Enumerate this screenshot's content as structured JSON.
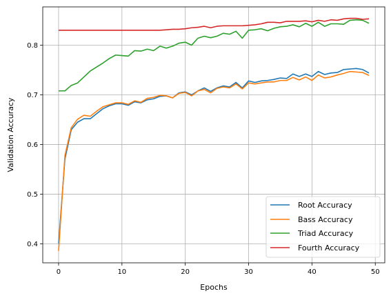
{
  "chart_data": {
    "type": "line",
    "title": "",
    "xlabel": "Epochs",
    "ylabel": "Validation Accuracy",
    "xlim": [
      -2.5,
      51.5
    ],
    "ylim": [
      0.362,
      0.877
    ],
    "xticks": [
      0,
      10,
      20,
      30,
      40,
      50
    ],
    "yticks": [
      0.4,
      0.5,
      0.6,
      0.7,
      0.8
    ],
    "grid": true,
    "legend_position": "lower-right",
    "x": [
      0,
      1,
      2,
      3,
      4,
      5,
      6,
      7,
      8,
      9,
      10,
      11,
      12,
      13,
      14,
      15,
      16,
      17,
      18,
      19,
      20,
      21,
      22,
      23,
      24,
      25,
      26,
      27,
      28,
      29,
      30,
      31,
      32,
      33,
      34,
      35,
      36,
      37,
      38,
      39,
      40,
      41,
      42,
      43,
      44,
      45,
      46,
      47,
      48,
      49
    ],
    "series": [
      {
        "name": "Root Accuracy",
        "color": "#1f77b4",
        "values": [
          0.401,
          0.571,
          0.63,
          0.645,
          0.652,
          0.652,
          0.662,
          0.672,
          0.678,
          0.682,
          0.682,
          0.679,
          0.686,
          0.684,
          0.69,
          0.692,
          0.697,
          0.698,
          0.694,
          0.704,
          0.706,
          0.7,
          0.708,
          0.714,
          0.707,
          0.714,
          0.718,
          0.716,
          0.725,
          0.714,
          0.728,
          0.725,
          0.728,
          0.729,
          0.731,
          0.734,
          0.733,
          0.742,
          0.737,
          0.742,
          0.737,
          0.747,
          0.741,
          0.744,
          0.745,
          0.751,
          0.752,
          0.753,
          0.751,
          0.744
        ]
      },
      {
        "name": "Bass Accuracy",
        "color": "#ff7f0e",
        "values": [
          0.386,
          0.578,
          0.634,
          0.651,
          0.659,
          0.657,
          0.667,
          0.676,
          0.68,
          0.684,
          0.684,
          0.681,
          0.688,
          0.685,
          0.693,
          0.695,
          0.699,
          0.698,
          0.694,
          0.703,
          0.705,
          0.698,
          0.708,
          0.711,
          0.704,
          0.713,
          0.716,
          0.714,
          0.722,
          0.712,
          0.724,
          0.722,
          0.724,
          0.726,
          0.726,
          0.729,
          0.729,
          0.735,
          0.73,
          0.736,
          0.729,
          0.74,
          0.734,
          0.736,
          0.74,
          0.743,
          0.747,
          0.746,
          0.745,
          0.739
        ]
      },
      {
        "name": "Triad Accuracy",
        "color": "#2ca02c",
        "values": [
          0.708,
          0.708,
          0.719,
          0.724,
          0.736,
          0.748,
          0.756,
          0.764,
          0.773,
          0.78,
          0.779,
          0.778,
          0.789,
          0.788,
          0.792,
          0.789,
          0.798,
          0.794,
          0.798,
          0.804,
          0.806,
          0.8,
          0.814,
          0.818,
          0.815,
          0.818,
          0.824,
          0.822,
          0.828,
          0.814,
          0.83,
          0.831,
          0.833,
          0.829,
          0.834,
          0.837,
          0.838,
          0.841,
          0.837,
          0.844,
          0.838,
          0.846,
          0.838,
          0.843,
          0.843,
          0.842,
          0.85,
          0.851,
          0.85,
          0.844
        ]
      },
      {
        "name": "Fourth Accuracy",
        "color": "#d62728",
        "values": [
          0.83,
          0.83,
          0.83,
          0.83,
          0.83,
          0.83,
          0.83,
          0.83,
          0.83,
          0.83,
          0.83,
          0.83,
          0.83,
          0.83,
          0.83,
          0.83,
          0.83,
          0.831,
          0.832,
          0.832,
          0.833,
          0.835,
          0.836,
          0.838,
          0.835,
          0.838,
          0.839,
          0.839,
          0.839,
          0.839,
          0.84,
          0.841,
          0.843,
          0.846,
          0.846,
          0.845,
          0.848,
          0.848,
          0.848,
          0.849,
          0.847,
          0.85,
          0.848,
          0.851,
          0.85,
          0.853,
          0.854,
          0.854,
          0.852,
          0.853
        ]
      }
    ]
  }
}
